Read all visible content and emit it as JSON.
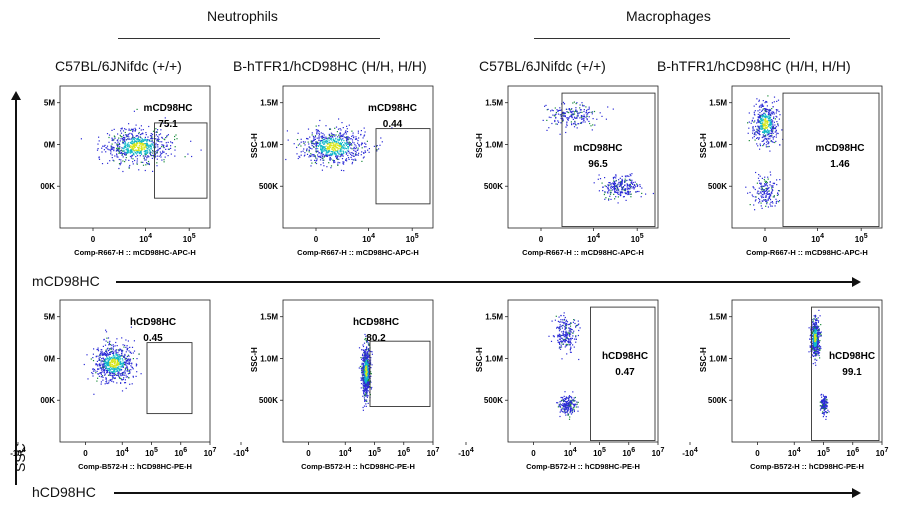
{
  "groups": [
    {
      "label": "Neutrophils"
    },
    {
      "label": "Macrophages"
    }
  ],
  "columns": [
    {
      "title": "C57BL/6JNifdc (+/+)"
    },
    {
      "title": "B-hTFR1/hCD98HC (H/H, H/H)"
    },
    {
      "title": "C57BL/6JNifdc (+/+)"
    },
    {
      "title": "B-hTFR1/hCD98HC (H/H, H/H)"
    }
  ],
  "axes": {
    "y_arrow_label": "SSC",
    "row1_arrow_label": "mCD98HC",
    "row2_arrow_label": "hCD98HC"
  },
  "chart_data": [
    {
      "type": "scatter",
      "row": 1,
      "col": 1,
      "cell_type": "Neutrophils",
      "strain": "C57BL/6JNifdc (+/+)",
      "gate_name": "mCD98HC",
      "gate_percent": "75.1",
      "xlabel": "Comp-R667-H :: mCD98HC-APC-H",
      "ylabel": "",
      "x_ticks": [
        "0",
        "10^4",
        "10^5"
      ],
      "y_ticks": [
        "5M",
        "0M",
        "00K"
      ],
      "clusters": [
        {
          "x": 6500,
          "y": 980000,
          "spread_x": 0.9,
          "spread_y": 0.28,
          "n": 700
        }
      ]
    },
    {
      "type": "scatter",
      "row": 1,
      "col": 2,
      "cell_type": "Neutrophils",
      "strain": "B-hTFR1/hCD98HC (H/H, H/H)",
      "gate_name": "mCD98HC",
      "gate_percent": "0.44",
      "xlabel": "Comp-R667-H :: mCD98HC-APC-H",
      "ylabel": "SSC-H",
      "x_ticks": [
        "0",
        "10^4",
        "10^5"
      ],
      "y_ticks": [
        "1.5M",
        "1.0M",
        "500K"
      ],
      "clusters": [
        {
          "x": 1500,
          "y": 980000,
          "spread_x": 0.9,
          "spread_y": 0.28,
          "n": 700
        }
      ]
    },
    {
      "type": "scatter",
      "row": 1,
      "col": 3,
      "cell_type": "Macrophages",
      "strain": "C57BL/6JNifdc (+/+)",
      "gate_name": "mCD98HC",
      "gate_percent": "96.5",
      "xlabel": "Comp-R667-H :: mCD98HC-APC-H",
      "ylabel": "SSC-H",
      "x_ticks": [
        "0",
        "10^4",
        "10^5"
      ],
      "y_ticks": [
        "1.5M",
        "1.0M",
        "500K"
      ],
      "clusters": [
        {
          "x": 40000,
          "y": 500000,
          "spread_x": 0.55,
          "spread_y": 0.18,
          "n": 260
        },
        {
          "x": 3000,
          "y": 1350000,
          "spread_x": 0.7,
          "spread_y": 0.2,
          "n": 220
        }
      ]
    },
    {
      "type": "scatter",
      "row": 1,
      "col": 4,
      "cell_type": "Macrophages",
      "strain": "B-hTFR1/hCD98HC (H/H, H/H)",
      "gate_name": "mCD98HC",
      "gate_percent": "1.46",
      "xlabel": "Comp-R667-H :: mCD98HC-APC-H",
      "ylabel": "SSC-H",
      "x_ticks": [
        "0",
        "10^4",
        "10^5"
      ],
      "y_ticks": [
        "1.5M",
        "1.0M",
        "500K"
      ],
      "clusters": [
        {
          "x": 0,
          "y": 1250000,
          "spread_x": 0.35,
          "spread_y": 0.35,
          "n": 450
        },
        {
          "x": 0,
          "y": 450000,
          "spread_x": 0.35,
          "spread_y": 0.25,
          "n": 180
        }
      ]
    },
    {
      "type": "scatter",
      "row": 2,
      "col": 1,
      "cell_type": "Neutrophils",
      "strain": "C57BL/6JNifdc (+/+)",
      "gate_name": "hCD98HC",
      "gate_percent": "0.45",
      "xlabel": "Comp-B572-H :: hCD98HC-PE-H",
      "ylabel": "",
      "x_ticks": [
        "-10^4",
        "0",
        "10^4",
        "10^5",
        "10^6",
        "10^7"
      ],
      "y_ticks": [
        "5M",
        "0M",
        "00K"
      ],
      "clusters": [
        {
          "x": 5000,
          "y": 950000,
          "spread_x": 0.55,
          "spread_y": 0.3,
          "n": 650
        }
      ]
    },
    {
      "type": "scatter",
      "row": 2,
      "col": 2,
      "cell_type": "Neutrophils",
      "strain": "B-hTFR1/hCD98HC (H/H, H/H)",
      "gate_name": "hCD98HC",
      "gate_percent": "80.2",
      "xlabel": "Comp-B572-H :: hCD98HC-PE-H",
      "ylabel": "SSC-H",
      "x_ticks": [
        "-10^4",
        "0",
        "10^4",
        "10^5",
        "10^6",
        "10^7"
      ],
      "y_ticks": [
        "1.5M",
        "1.0M",
        "500K"
      ],
      "clusters": [
        {
          "x": 50000,
          "y": 850000,
          "spread_x": 0.12,
          "spread_y": 0.4,
          "n": 700
        }
      ]
    },
    {
      "type": "scatter",
      "row": 2,
      "col": 3,
      "cell_type": "Macrophages",
      "strain": "C57BL/6JNifdc (+/+)",
      "gate_name": "hCD98HC",
      "gate_percent": "0.47",
      "xlabel": "Comp-B572-H :: hCD98HC-PE-H",
      "ylabel": "SSC-H",
      "x_ticks": [
        "-10^4",
        "0",
        "10^4",
        "10^5",
        "10^6",
        "10^7"
      ],
      "y_ticks": [
        "1.5M",
        "1.0M",
        "500K"
      ],
      "clusters": [
        {
          "x": 7000,
          "y": 1300000,
          "spread_x": 0.35,
          "spread_y": 0.28,
          "n": 220
        },
        {
          "x": 8000,
          "y": 450000,
          "spread_x": 0.25,
          "spread_y": 0.15,
          "n": 200
        }
      ]
    },
    {
      "type": "scatter",
      "row": 2,
      "col": 4,
      "cell_type": "Macrophages",
      "strain": "B-hTFR1/hCD98HC (H/H, H/H)",
      "gate_name": "hCD98HC",
      "gate_percent": "99.1",
      "xlabel": "Comp-B572-H :: hCD98HC-PE-H",
      "ylabel": "SSC-H",
      "x_ticks": [
        "-10^4",
        "0",
        "10^4",
        "10^5",
        "10^6",
        "10^7"
      ],
      "y_ticks": [
        "1.5M",
        "1.0M",
        "500K"
      ],
      "clusters": [
        {
          "x": 50000,
          "y": 1250000,
          "spread_x": 0.12,
          "spread_y": 0.3,
          "n": 500
        },
        {
          "x": 100000,
          "y": 450000,
          "spread_x": 0.1,
          "spread_y": 0.15,
          "n": 150
        }
      ]
    }
  ],
  "colors": {
    "dot_low": "#2b2bd6",
    "dot_mid": "#11b8c8",
    "dot_high": "#d8e61a",
    "frame": "#222222",
    "arrow": "#111111"
  }
}
